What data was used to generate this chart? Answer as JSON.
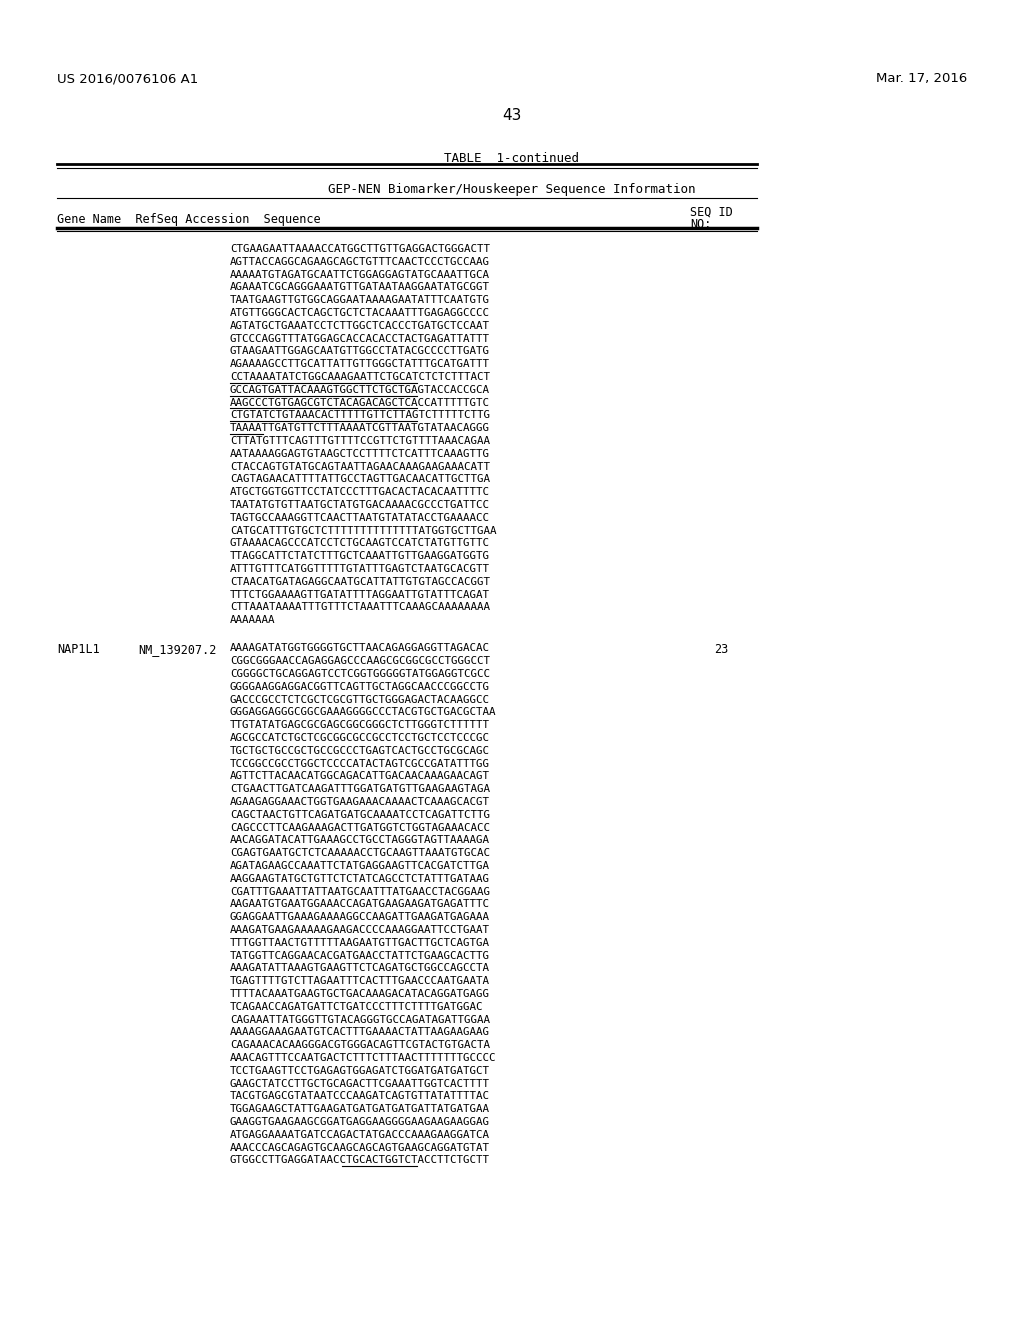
{
  "page_number": "43",
  "patent_number": "US 2016/0076106 A1",
  "patent_date": "Mar. 17, 2016",
  "table_title": "TABLE  1-continued",
  "table_subtitle": "GEP-NEN Biomarker/Houskeeper Sequence Information",
  "seq1_lines": [
    "CTGAAGAATTAAAACCATGGCTTGTTGAGGACTGGGACTT",
    "AGTTACCAGGCAGAAGCAGCTGTTTCAACTCCCTGCCAAG",
    "AAAAATGTAGATGCAATTCTGGAGGAGTATGCAAATTGCA",
    "AGAAATCGCAGGGAAATGTTGATAATAAGGAATATGCGGT",
    "TAATGAAGTTGTGGCAGGAATAAAAGAATATTTCAATGTG",
    "ATGTTGGGCACTCAGCTGCTCTACAAATTTGAGAGGCCCC",
    "AGTATGCTGAAATCCTCTTGGCTCACCCTGATGCTCCAAT",
    "GTCCCAGGTTTATGGAGCACCACACCTACTGAGATTATTT",
    "GTAAGAATTGGAGCAATGTTGGCCTATACGCCCCTTGATG",
    "AGAAAAGCCTTGCATTATTGTTGGGCTATTTGCATGATTT",
    "CCTAAAATATCTGGCAAAGAATTCTGCATCTCTCTTTACT",
    "GCCAGTGATTACAAAGTGGCTTCTGCTGAGTACCACCGCA",
    "AAGCCCTGTGAGCGTCTACAGACAGCTCACCATTTTTGTC",
    "CTGTATCTGTAAACACTTTTTGTTCTTAGTCTTTTTCTTG",
    "TAAAATTGATGTTCTTTAAAATCGTTAATGTATAACAGGG",
    "CTTATGTTTCAGTTTGTTTTCCGTTCTGTTTTAAACAGAA",
    "AATAAAAGGAGTGTAAGCTCCTTTTCTCATTTCAAAGTTG",
    "CTACCAGTGTATGCAGTAATTAGAACAAAGAAGAAACATT",
    "CAGTAGAACATTTTATTGCCTAGTTGACAACATTGCTTGA",
    "ATGCTGGTGGTTCCTATCCCTTTGACACTACACAATTTTC",
    "TAATATGTGTTAATGCTATGTGACAAAACGCCCTGATTCC",
    "TAGTGCCAAAGGTTCAACTTAATGTATATACCTGAAAACC",
    "CATGCATTTGTGCTCTTTTTTTTTTTTTTATGGTGCTTGAA",
    "GTAAAACAGCCCATCCTCTGCAAGTCCATCTATGTTGTTC",
    "TTAGGCATTCTATCTTTGCTCAAATTGTTGAAGGATGGTG",
    "ATTTGTTTCATGGTTTTTGTATTTGAGTCTAATGCACGTT",
    "CTAACATGATAGAGGCAATGCATTATTGTGTAGCCACGGT",
    "TTTCTGGAAAAGTTGATATTTTAGGAATTGTATTTCAGAT",
    "CTTAAATAAAATTTGTTTCTAAATTTCAAAGCAAAAAAAA",
    "AAAAAAA"
  ],
  "underlined_indices_seq1": [
    10,
    11,
    12,
    13,
    14
  ],
  "underline_partial_last": true,
  "seq2_gene": "NAP1L1",
  "seq2_refseq": "NM_139207.2",
  "seq2_id": "23",
  "seq2_lines": [
    "AAAAGATATGGTGGGGTGCTTAACAGAGGAGGTTAGACAC",
    "CGGCGGGAACCAGAGGAGCCCAAGCGCGGCGCCTGGGCCT",
    "CGGGGCTGCAGGAGTCCTCGGTGGGGGTATGGAGGTCGCC",
    "GGGGAAGGAGGACGGTTCAGTTGCTAGGCAACCCGGCCTG",
    "GACCCGCCTCTCGCTCGCGTTGCTGGGAGACTACAAGGCC",
    "GGGAGGAGGGCGGCGAAAGGGGCCCTACGTGCTGACGCTAA",
    "TTGTATATGAGCGCGAGCGGCGGGCTCTTGGGTCTTTTTT",
    "AGCGCCATCTGCTCGCGGCGCCGCCTCCTGCTCCTCCCGC",
    "TGCTGCTGCCGCTGCCGCCCTGAGTCACTGCCTGCGCAGC",
    "TCCGGCCGCCTGGCTCCCCATACTAGTCGCCGATATTTGG",
    "AGTTCTTACAACATGGCAGACATTGACAACAAAGAACAGT",
    "CTGAACTTGATCAAGATTTGGATGATGTTGAAGAAGTAGA",
    "AGAAGAGGAAACTGGTGAAGAAACAAAACTCAAAGCACGT",
    "CAGCTAACTGTTCAGATGATGCAAAATCCTCAGATTCTTG",
    "CAGCCCTTCAAGAAAGACTTGATGGTCTGGTAGAAACACC",
    "AACAGGATACATTGAAAGCCTGCCTAGGGTAGTTAAAAGA",
    "CGAGTGAATGCTCTCAAAAACCTGCAAGTTAAATGTGCAC",
    "AGATAGAAGCCAAATTCTATGAGGAAGTTCACGATCTTGA",
    "AAGGAAGTATGCTGTTCTCTATCAGCCTCTATTTGATAAG",
    "CGATTTGAAATTATTAATGCAATTTATGAACCTACGGAAG",
    "AAGAATGTGAATGGAAACCAGATGAAGAAGATGAGATTTC",
    "GGAGGAATTGAAAGAAAAGGCCAAGATTGAAGATGAGAAA",
    "AAAGATGAAGAAAAAGAAGACCCCAAAGGAATTCCTGAAT",
    "TTTGGTTAACTGTTTTTAAGAATGTTGACTTGCTCAGTGA",
    "TATGGTTCAGGAACACGATGAACCTATTCTGAAGCACTTG",
    "AAAGATATTAAAGTGAAGTTCTCAGATGCTGGCCAGCCTA",
    "TGAGTTTTGTCTTAGAATTTCACTTTGAACCCAATGAATA",
    "TTTTACAAATGAAGTGCTGACAAAGACATACAGGATGAGG",
    "TCAGAACCAGATGATTCTGATCCCTTTCTTTTGATGGAC",
    "CAGAAATTATGGGTTGTACAGGGTGCCAGATAGATTGGAA",
    "AAAAGGAAAGAATGTCACTTTGAAAACTATTAAGAAGAAG",
    "CAGAAACACAAGGGACGTGGGACAGTTCGTACTGTGACTA",
    "AAACAGTTTCCAATGACTCTTTCTTTAACTTTTTTTGCCCC",
    "TCCTGAAGTTCCTGAGAGTGGAGATCTGGATGATGATGCT",
    "GAAGCTATCCTTGCTGCAGACTTCGAAATTGGTCACTTTT",
    "TACGTGAGCGTATAATCCCAAGATCAGTGTTATATTTTAC",
    "TGGAGAAGCTATTGAAGATGATGATGATGATTATGATGAA",
    "GAAGGTGAAGAAGCGGATGAGGAAGGGGAAGAAGAAGGAG",
    "ATGAGGAAAATGATCCAGACTATGACCCAAAGAAGGATCA",
    "AAACCCAGCAGAGTGCAAGCAGCAGTGAAGCAGGATGTAT",
    "GTGGCCTTGAGGATAACCTGCACTGGTCTACCTTCTGCTT"
  ],
  "underlined_indices_seq2": [
    40
  ],
  "underline_partial_seq2_last": "GGTCTACCTTCTGCTT",
  "background_color": "#ffffff"
}
